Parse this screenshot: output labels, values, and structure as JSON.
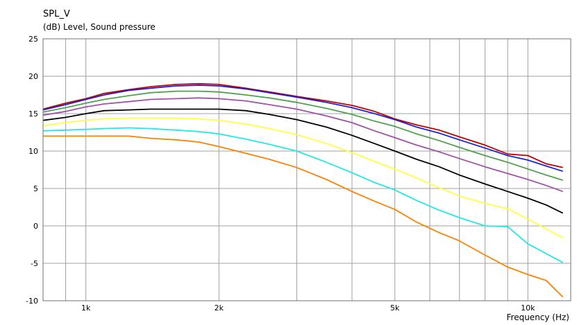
{
  "chart_data": {
    "type": "line",
    "title": "SPL_V",
    "ylabel": "(dB)  Level, Sound pressure",
    "xlabel": "Frequency  (Hz)",
    "x_scale": "log",
    "xlim": [
      800,
      12500
    ],
    "ylim": [
      -10,
      25
    ],
    "grid": true,
    "y_ticks": [
      25,
      20,
      15,
      10,
      5,
      0,
      -5,
      -10
    ],
    "y_tick_labels": [
      "25",
      "20",
      "15",
      "10",
      "5",
      "0",
      "-5",
      "-10"
    ],
    "x_ticks": [
      1000,
      2000,
      5000,
      10000
    ],
    "x_tick_labels": [
      "1k",
      "2k",
      "5k",
      "10k"
    ],
    "x_minor_grid": [
      900,
      1000,
      2000,
      3000,
      4000,
      5000,
      6000,
      7000,
      8000,
      9000,
      10000
    ],
    "x": [
      800,
      900,
      1000,
      1100,
      1250,
      1400,
      1600,
      1800,
      2000,
      2300,
      2600,
      3000,
      3500,
      4000,
      4500,
      5000,
      5600,
      6300,
      7000,
      8000,
      9000,
      10000,
      11000,
      12000
    ],
    "series": [
      {
        "color": "#c00000",
        "values": [
          15.6,
          16.4,
          17.0,
          17.7,
          18.2,
          18.6,
          18.9,
          19.0,
          18.9,
          18.4,
          17.9,
          17.3,
          16.7,
          16.1,
          15.3,
          14.3,
          13.5,
          12.8,
          11.9,
          10.8,
          9.6,
          9.4,
          8.3,
          7.8
        ]
      },
      {
        "color": "#2020c8",
        "values": [
          15.5,
          16.2,
          16.9,
          17.5,
          18.1,
          18.4,
          18.7,
          18.8,
          18.7,
          18.3,
          17.8,
          17.2,
          16.5,
          15.8,
          15.0,
          14.2,
          13.2,
          12.4,
          11.5,
          10.4,
          9.4,
          8.8,
          8.0,
          7.3
        ]
      },
      {
        "color": "#50a050",
        "values": [
          15.2,
          15.8,
          16.4,
          16.9,
          17.4,
          17.8,
          18.0,
          18.0,
          17.9,
          17.5,
          17.1,
          16.5,
          15.7,
          14.9,
          14.0,
          13.3,
          12.3,
          11.4,
          10.5,
          9.4,
          8.5,
          7.6,
          6.8,
          6.1
        ]
      },
      {
        "color": "#a050a8",
        "values": [
          14.8,
          15.3,
          15.9,
          16.3,
          16.6,
          16.9,
          17.0,
          17.1,
          17.0,
          16.7,
          16.2,
          15.6,
          14.7,
          13.8,
          12.7,
          11.8,
          10.8,
          9.9,
          9.0,
          7.9,
          7.0,
          6.2,
          5.4,
          4.6
        ]
      },
      {
        "color": "#000000",
        "values": [
          14.1,
          14.5,
          15.0,
          15.4,
          15.5,
          15.6,
          15.6,
          15.6,
          15.6,
          15.4,
          14.9,
          14.2,
          13.2,
          12.1,
          11.0,
          10.0,
          8.9,
          7.9,
          6.8,
          5.6,
          4.6,
          3.7,
          2.8,
          1.7
        ]
      },
      {
        "color": "#ffff40",
        "values": [
          13.4,
          13.8,
          14.1,
          14.3,
          14.4,
          14.4,
          14.4,
          14.3,
          14.1,
          13.6,
          13.0,
          12.2,
          11.0,
          9.8,
          8.6,
          7.6,
          6.4,
          5.1,
          4.0,
          3.0,
          2.3,
          0.9,
          -0.4,
          -1.6
        ]
      },
      {
        "color": "#20e8e8",
        "values": [
          12.7,
          12.8,
          12.9,
          13.0,
          13.1,
          13.0,
          12.8,
          12.6,
          12.3,
          11.6,
          10.9,
          10.0,
          8.5,
          7.1,
          5.8,
          4.8,
          3.4,
          2.1,
          1.1,
          0.0,
          -0.1,
          -2.4,
          -3.7,
          -4.9
        ]
      },
      {
        "color": "#ff8000",
        "values": [
          12.0,
          12.0,
          12.0,
          12.0,
          12.0,
          11.7,
          11.5,
          11.2,
          10.6,
          9.7,
          8.9,
          7.8,
          6.2,
          4.6,
          3.3,
          2.2,
          0.5,
          -0.9,
          -2.0,
          -3.9,
          -5.5,
          -6.5,
          -7.3,
          -9.5
        ]
      }
    ]
  },
  "colors": {
    "grid": "#a0a0a0",
    "frame": "#707070",
    "background": "#ffffff"
  }
}
